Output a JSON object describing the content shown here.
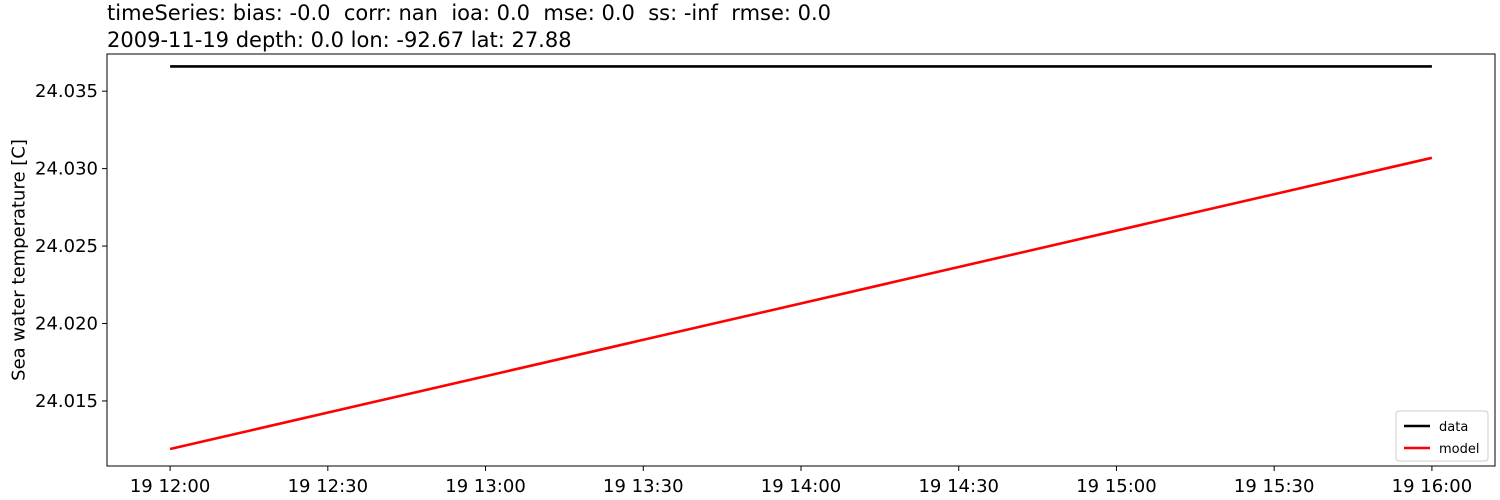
{
  "chart_data": {
    "type": "line",
    "title_line1": "timeSeries: bias: -0.0  corr: nan  ioa: 0.0  mse: 0.0  ss: -inf  rmse: 0.0",
    "title_line2": "2009-11-19 depth: 0.0 lon: -92.67 lat: 27.88",
    "xlabel": "",
    "ylabel": "Sea water temperature [C]",
    "xlim": [
      "2009-11-19 11:48",
      "2009-11-19 16:12"
    ],
    "ylim": [
      24.0108,
      24.0374
    ],
    "x_ticks": [
      {
        "time": "2009-11-19 12:00",
        "label": "19 12:00"
      },
      {
        "time": "2009-11-19 12:30",
        "label": "19 12:30"
      },
      {
        "time": "2009-11-19 13:00",
        "label": "19 13:00"
      },
      {
        "time": "2009-11-19 13:30",
        "label": "19 13:30"
      },
      {
        "time": "2009-11-19 14:00",
        "label": "19 14:00"
      },
      {
        "time": "2009-11-19 14:30",
        "label": "19 14:30"
      },
      {
        "time": "2009-11-19 15:00",
        "label": "19 15:00"
      },
      {
        "time": "2009-11-19 15:30",
        "label": "19 15:30"
      },
      {
        "time": "2009-11-19 16:00",
        "label": "19 16:00"
      }
    ],
    "y_ticks": [
      {
        "value": 24.015,
        "label": "24.015"
      },
      {
        "value": 24.02,
        "label": "24.020"
      },
      {
        "value": 24.025,
        "label": "24.025"
      },
      {
        "value": 24.03,
        "label": "24.030"
      },
      {
        "value": 24.035,
        "label": "24.035"
      }
    ],
    "grid": false,
    "legend_position": "lower right",
    "series": [
      {
        "name": "data",
        "color": "#000000",
        "points": [
          {
            "x": "2009-11-19 12:00",
            "y": 24.0366
          },
          {
            "x": "2009-11-19 16:00",
            "y": 24.0366
          }
        ]
      },
      {
        "name": "model",
        "color": "#ff0000",
        "points": [
          {
            "x": "2009-11-19 12:00",
            "y": 24.0119
          },
          {
            "x": "2009-11-19 16:00",
            "y": 24.0307
          }
        ]
      }
    ]
  }
}
